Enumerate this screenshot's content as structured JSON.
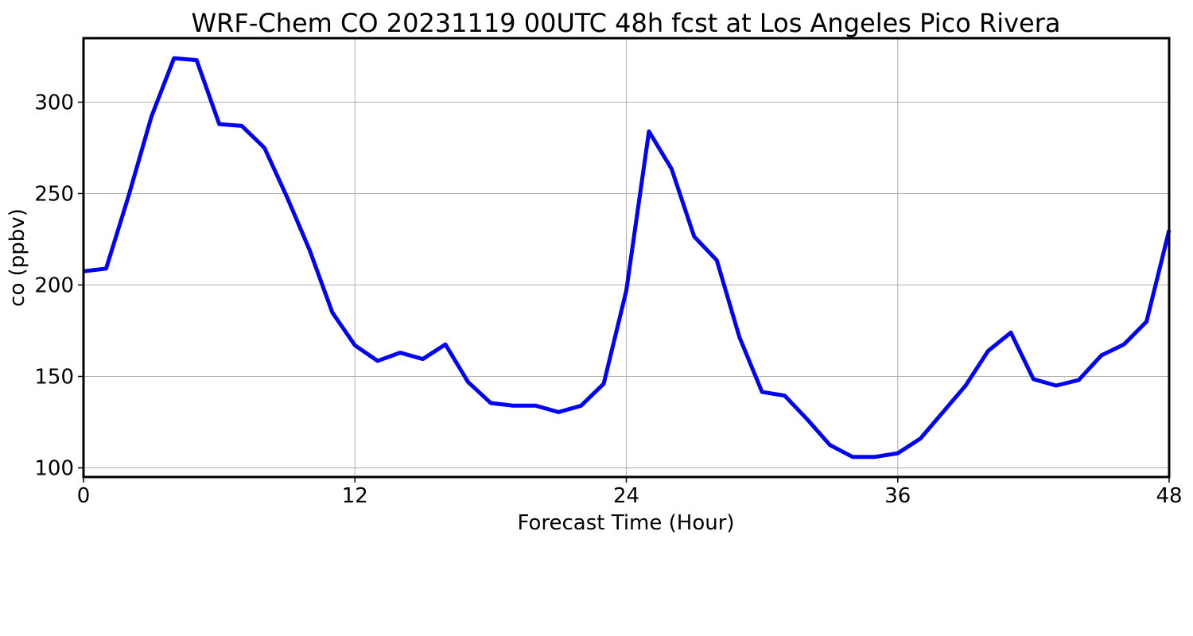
{
  "chart_data": {
    "type": "line",
    "title": "WRF-Chem CO  20231119 00UTC 48h fcst at Los Angeles Pico Rivera",
    "xlabel": "Forecast Time (Hour)",
    "ylabel": "co  (ppbv)",
    "xlim": [
      0,
      48
    ],
    "ylim": [
      95,
      335
    ],
    "xticks": [
      0,
      12,
      24,
      36,
      48
    ],
    "yticks": [
      100,
      150,
      200,
      250,
      300
    ],
    "xtick_labels": [
      "0",
      "12",
      "24",
      "36",
      "48"
    ],
    "ytick_labels": [
      "100",
      "150",
      "200",
      "250",
      "300"
    ],
    "grid": true,
    "series_color": "#0000ff",
    "x": [
      0,
      1,
      2,
      3,
      4,
      5,
      6,
      7,
      8,
      9,
      10,
      11,
      12,
      13,
      14,
      15,
      16,
      17,
      18,
      19,
      20,
      21,
      22,
      23,
      24,
      25,
      26,
      27,
      28,
      29,
      30,
      31,
      32,
      33,
      34,
      35,
      36,
      37,
      38,
      39,
      40,
      41,
      42,
      43,
      44,
      45,
      46,
      47,
      48
    ],
    "series": [
      {
        "values": [
          207.5,
          209,
          249,
          292,
          324,
          323,
          288,
          287,
          275,
          248,
          219,
          185,
          167,
          158.5,
          163,
          159.5,
          167.5,
          147,
          135.5,
          134,
          134,
          130.5,
          134,
          146,
          197,
          284,
          263.5,
          226.5,
          213.5,
          171.5,
          141.5,
          139.5,
          126.5,
          112.5,
          106,
          106,
          108,
          116,
          130.5,
          145,
          164,
          174,
          148.5,
          145,
          148,
          161.5,
          167.5,
          180,
          230
        ]
      }
    ]
  }
}
